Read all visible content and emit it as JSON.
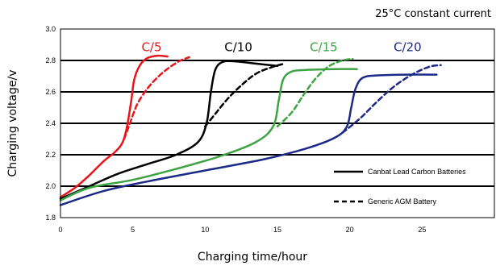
{
  "chart_data": {
    "type": "line",
    "title": "",
    "annotation": "25°C constant current",
    "xlabel": "Charging time/hour",
    "ylabel": "Charging voltage/v",
    "xlim": [
      0,
      30
    ],
    "ylim": [
      1.8,
      3.0
    ],
    "xticks": [
      "0",
      "5",
      "10",
      "15",
      "20",
      "25"
    ],
    "yticks": [
      "1.8",
      "2.0",
      "2.2",
      "2.4",
      "2.6",
      "2.8",
      "3.0"
    ],
    "grid": "horizontal",
    "legend_position": "bottom-right",
    "legend": [
      {
        "label": "Canbat Lead Carbon Batteries",
        "style": "solid"
      },
      {
        "label": "Generic AGM Battery",
        "style": "dashed"
      }
    ],
    "series": [
      {
        "rate": "C/5",
        "battery": "Canbat Lead Carbon Batteries",
        "style": "solid",
        "color": "#e8151b",
        "points": [
          [
            0,
            1.93
          ],
          [
            1,
            1.99
          ],
          [
            2,
            2.07
          ],
          [
            3,
            2.16
          ],
          [
            3.8,
            2.22
          ],
          [
            4.3,
            2.28
          ],
          [
            4.6,
            2.38
          ],
          [
            4.9,
            2.55
          ],
          [
            5.1,
            2.68
          ],
          [
            5.5,
            2.77
          ],
          [
            6,
            2.815
          ],
          [
            6.7,
            2.83
          ],
          [
            7.4,
            2.825
          ]
        ]
      },
      {
        "rate": "C/5",
        "battery": "Generic AGM Battery",
        "style": "dashed",
        "color": "#e8151b",
        "points": [
          [
            4.4,
            2.3
          ],
          [
            4.8,
            2.4
          ],
          [
            5.3,
            2.52
          ],
          [
            6,
            2.62
          ],
          [
            6.8,
            2.7
          ],
          [
            7.6,
            2.76
          ],
          [
            8.3,
            2.8
          ],
          [
            8.9,
            2.82
          ]
        ]
      },
      {
        "rate": "C/10",
        "battery": "Canbat Lead Carbon Batteries",
        "style": "solid",
        "color": "#000000",
        "points": [
          [
            0,
            1.92
          ],
          [
            2,
            2.0
          ],
          [
            4,
            2.08
          ],
          [
            6,
            2.14
          ],
          [
            8,
            2.2
          ],
          [
            9.5,
            2.28
          ],
          [
            10.1,
            2.4
          ],
          [
            10.4,
            2.6
          ],
          [
            10.7,
            2.74
          ],
          [
            11.2,
            2.79
          ],
          [
            12,
            2.795
          ],
          [
            13.5,
            2.78
          ],
          [
            15,
            2.765
          ]
        ]
      },
      {
        "rate": "C/10",
        "battery": "Generic AGM Battery",
        "style": "dashed",
        "color": "#000000",
        "points": [
          [
            10,
            2.38
          ],
          [
            10.7,
            2.46
          ],
          [
            11.6,
            2.56
          ],
          [
            12.6,
            2.65
          ],
          [
            13.6,
            2.72
          ],
          [
            14.7,
            2.76
          ],
          [
            15.5,
            2.78
          ]
        ]
      },
      {
        "rate": "C/15",
        "battery": "Canbat Lead Carbon Batteries",
        "style": "solid",
        "color": "#3ea343",
        "points": [
          [
            0,
            1.91
          ],
          [
            2,
            1.99
          ],
          [
            5,
            2.04
          ],
          [
            8,
            2.11
          ],
          [
            11,
            2.19
          ],
          [
            13.5,
            2.28
          ],
          [
            14.7,
            2.38
          ],
          [
            15.1,
            2.55
          ],
          [
            15.4,
            2.68
          ],
          [
            16,
            2.73
          ],
          [
            17,
            2.74
          ],
          [
            19,
            2.745
          ],
          [
            20.5,
            2.745
          ]
        ]
      },
      {
        "rate": "C/15",
        "battery": "Generic AGM Battery",
        "style": "dashed",
        "color": "#3ea343",
        "points": [
          [
            15,
            2.38
          ],
          [
            16,
            2.47
          ],
          [
            16.8,
            2.58
          ],
          [
            17.6,
            2.68
          ],
          [
            18.5,
            2.76
          ],
          [
            19.5,
            2.8
          ],
          [
            20.2,
            2.81
          ]
        ]
      },
      {
        "rate": "C/20",
        "battery": "Canbat Lead Carbon Batteries",
        "style": "solid",
        "color": "#1c2a87",
        "points": [
          [
            0,
            1.88
          ],
          [
            3,
            1.97
          ],
          [
            6,
            2.03
          ],
          [
            10,
            2.1
          ],
          [
            14,
            2.17
          ],
          [
            17,
            2.24
          ],
          [
            19,
            2.31
          ],
          [
            19.8,
            2.38
          ],
          [
            20.1,
            2.5
          ],
          [
            20.4,
            2.62
          ],
          [
            20.9,
            2.69
          ],
          [
            22,
            2.705
          ],
          [
            24,
            2.71
          ],
          [
            26,
            2.71
          ]
        ]
      },
      {
        "rate": "C/20",
        "battery": "Generic AGM Battery",
        "style": "dashed",
        "color": "#1c2a87",
        "points": [
          [
            19.5,
            2.34
          ],
          [
            20.7,
            2.43
          ],
          [
            21.8,
            2.53
          ],
          [
            23,
            2.63
          ],
          [
            24.3,
            2.71
          ],
          [
            25.5,
            2.76
          ],
          [
            26.3,
            2.77
          ]
        ]
      }
    ],
    "rate_labels": [
      {
        "text": "C/5",
        "x": 6.3,
        "y": 2.86,
        "color": "#e8151b"
      },
      {
        "text": "C/10",
        "x": 12.3,
        "y": 2.86,
        "color": "#000000"
      },
      {
        "text": "C/15",
        "x": 18.2,
        "y": 2.86,
        "color": "#3ea343"
      },
      {
        "text": "C/20",
        "x": 24.0,
        "y": 2.86,
        "color": "#1c2a87"
      }
    ]
  }
}
